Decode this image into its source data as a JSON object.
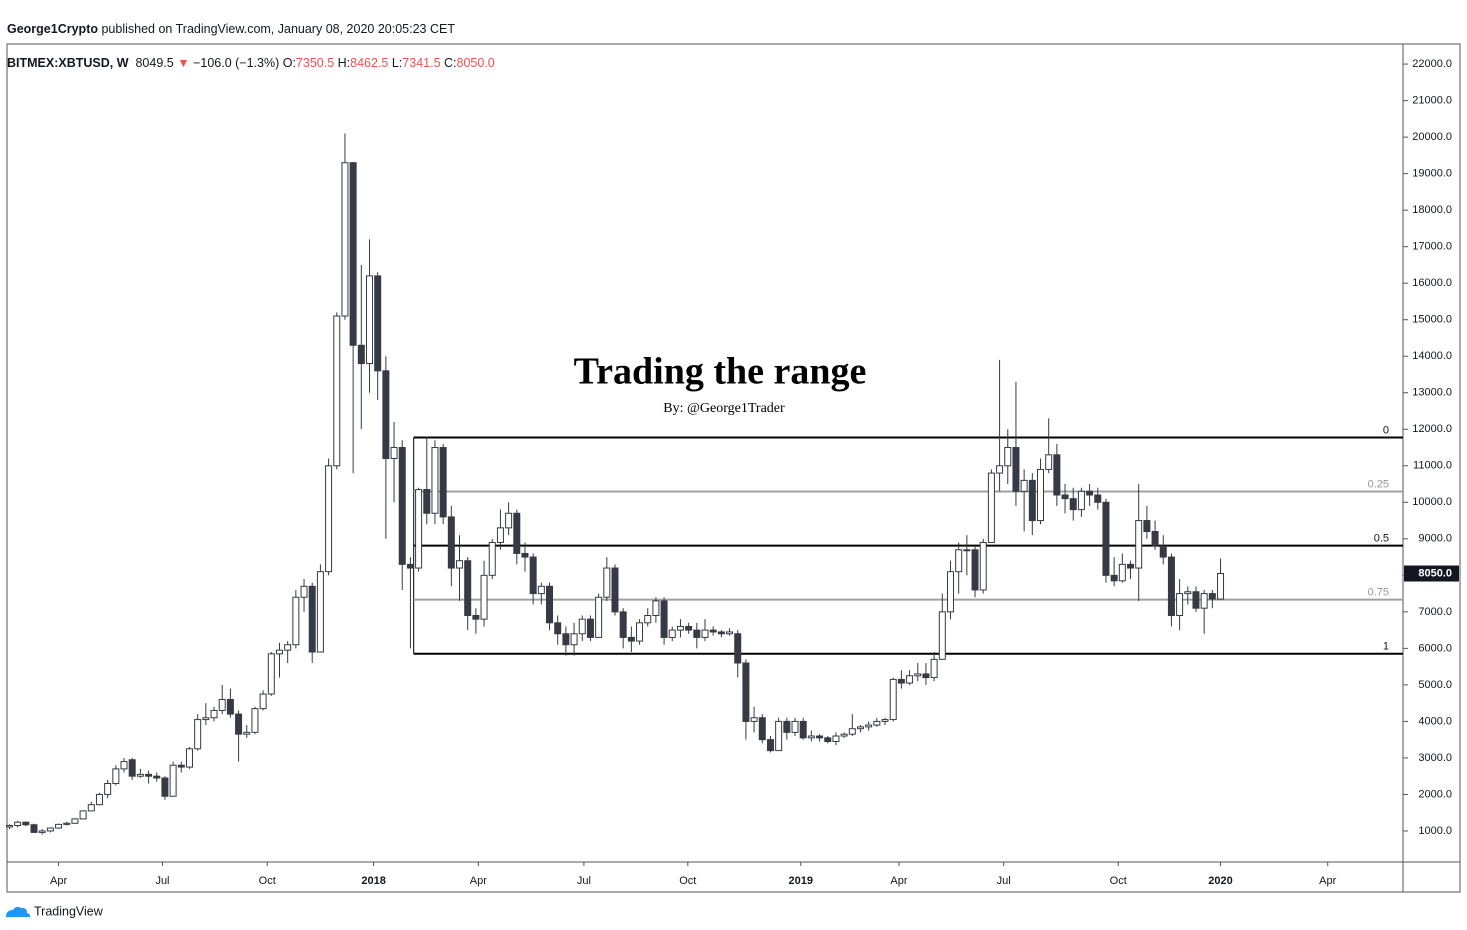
{
  "header": {
    "author": "George1Crypto",
    "published": "published on TradingView.com, January 08, 2020 20:05:23 CET",
    "symbol": "BITMEX:XBTUSD, W",
    "last": "8049.5",
    "change_arrow": "▼",
    "change": "−106.0 (−1.3%)",
    "ohlc": [
      {
        "key": "O:",
        "value": "7350.5"
      },
      {
        "key": "H:",
        "value": "8462.5"
      },
      {
        "key": "L:",
        "value": "7341.5"
      },
      {
        "key": "C:",
        "value": "8050.0"
      }
    ]
  },
  "chart_data": {
    "type": "candlestick",
    "title": "Trading the range",
    "subtitle": "By: @George1Trader",
    "up_color": "#ffffff",
    "down_color": "#363a45",
    "candles": [
      [
        1110,
        1180,
        1050,
        1150
      ],
      [
        1150,
        1280,
        1100,
        1240
      ],
      [
        1240,
        1260,
        1130,
        1170
      ],
      [
        1170,
        1200,
        950,
        960
      ],
      [
        960,
        1050,
        900,
        1000
      ],
      [
        1000,
        1090,
        960,
        1080
      ],
      [
        1080,
        1200,
        1060,
        1180
      ],
      [
        1180,
        1250,
        1150,
        1210
      ],
      [
        1210,
        1350,
        1200,
        1330
      ],
      [
        1330,
        1560,
        1320,
        1550
      ],
      [
        1550,
        1800,
        1550,
        1720
      ],
      [
        1720,
        2050,
        1700,
        2000
      ],
      [
        2000,
        2400,
        1900,
        2300
      ],
      [
        2300,
        2800,
        2250,
        2700
      ],
      [
        2700,
        3000,
        2600,
        2900
      ],
      [
        2950,
        3000,
        2400,
        2500
      ],
      [
        2500,
        2700,
        2450,
        2550
      ],
      [
        2550,
        2650,
        2300,
        2500
      ],
      [
        2500,
        2600,
        2350,
        2450
      ],
      [
        2450,
        2500,
        1850,
        1950
      ],
      [
        1950,
        2900,
        1950,
        2800
      ],
      [
        2800,
        2900,
        2600,
        2750
      ],
      [
        2750,
        3300,
        2700,
        3250
      ],
      [
        3250,
        4200,
        3200,
        4050
      ],
      [
        4050,
        4500,
        3900,
        4100
      ],
      [
        4100,
        4400,
        4000,
        4300
      ],
      [
        4300,
        5000,
        4200,
        4600
      ],
      [
        4600,
        4900,
        4100,
        4200
      ],
      [
        4200,
        4300,
        2900,
        3650
      ],
      [
        3650,
        3900,
        3550,
        3700
      ],
      [
        3700,
        4400,
        3650,
        4350
      ],
      [
        4350,
        4850,
        4300,
        4750
      ],
      [
        4750,
        5900,
        4700,
        5850
      ],
      [
        5850,
        6150,
        5200,
        5950
      ],
      [
        5950,
        6200,
        5600,
        6100
      ],
      [
        6100,
        7600,
        6000,
        7400
      ],
      [
        7400,
        7900,
        7000,
        7700
      ],
      [
        7700,
        7800,
        5600,
        5900
      ],
      [
        5900,
        8300,
        5900,
        8100
      ],
      [
        8100,
        11200,
        8000,
        11000
      ],
      [
        11000,
        15200,
        10900,
        15100
      ],
      [
        15100,
        20100,
        15000,
        19300
      ],
      [
        19300,
        19300,
        10800,
        14300
      ],
      [
        14300,
        16500,
        12000,
        13800
      ],
      [
        13800,
        17200,
        13000,
        16200
      ],
      [
        16200,
        16300,
        12800,
        13600
      ],
      [
        13600,
        14000,
        9000,
        11200
      ],
      [
        11200,
        12200,
        10000,
        11500
      ],
      [
        11500,
        11700,
        7600,
        8300
      ],
      [
        8300,
        8500,
        6000,
        8200
      ],
      [
        8200,
        10400,
        8100,
        10350
      ],
      [
        10350,
        11800,
        9400,
        9700
      ],
      [
        9700,
        11700,
        9400,
        11500
      ],
      [
        11500,
        11600,
        9400,
        9600
      ],
      [
        9600,
        9900,
        7700,
        8200
      ],
      [
        8200,
        9100,
        7300,
        8400
      ],
      [
        8400,
        8500,
        6500,
        6900
      ],
      [
        6900,
        7100,
        6400,
        6800
      ],
      [
        6800,
        8400,
        6600,
        8000
      ],
      [
        8000,
        9000,
        7900,
        8900
      ],
      [
        8900,
        9800,
        8700,
        9300
      ],
      [
        9300,
        10000,
        9100,
        9700
      ],
      [
        9700,
        9800,
        8300,
        8600
      ],
      [
        8600,
        8900,
        8100,
        8500
      ],
      [
        8500,
        8600,
        7200,
        7500
      ],
      [
        7500,
        7800,
        7200,
        7700
      ],
      [
        7700,
        7800,
        6500,
        6700
      ],
      [
        6700,
        6900,
        6100,
        6400
      ],
      [
        6400,
        6600,
        5800,
        6100
      ],
      [
        6100,
        6700,
        5800,
        6400
      ],
      [
        6400,
        6900,
        6200,
        6800
      ],
      [
        6800,
        6900,
        6200,
        6300
      ],
      [
        6300,
        7500,
        6300,
        7400
      ],
      [
        7400,
        8500,
        7300,
        8200
      ],
      [
        8200,
        8300,
        6900,
        7000
      ],
      [
        7000,
        7100,
        6000,
        6300
      ],
      [
        6300,
        6600,
        5900,
        6200
      ],
      [
        6200,
        6800,
        6100,
        6700
      ],
      [
        6700,
        7100,
        6600,
        6900
      ],
      [
        6900,
        7400,
        6700,
        7300
      ],
      [
        7300,
        7400,
        6100,
        6300
      ],
      [
        6300,
        6600,
        6200,
        6500
      ],
      [
        6500,
        6800,
        6300,
        6600
      ],
      [
        6600,
        6700,
        6400,
        6500
      ],
      [
        6500,
        6700,
        6000,
        6300
      ],
      [
        6300,
        6800,
        6200,
        6500
      ],
      [
        6500,
        6600,
        6350,
        6450
      ],
      [
        6450,
        6500,
        6300,
        6400
      ],
      [
        6400,
        6550,
        6350,
        6450
      ],
      [
        6400,
        6500,
        5200,
        5600
      ],
      [
        5600,
        5700,
        3500,
        4000
      ],
      [
        4000,
        4400,
        3700,
        4100
      ],
      [
        4100,
        4200,
        3400,
        3500
      ],
      [
        3500,
        3600,
        3150,
        3200
      ],
      [
        3200,
        4100,
        3200,
        4000
      ],
      [
        4000,
        4100,
        3500,
        3700
      ],
      [
        3700,
        4100,
        3600,
        4000
      ],
      [
        4000,
        4100,
        3500,
        3550
      ],
      [
        3550,
        3750,
        3450,
        3600
      ],
      [
        3600,
        3650,
        3450,
        3550
      ],
      [
        3550,
        3600,
        3400,
        3450
      ],
      [
        3450,
        3700,
        3350,
        3600
      ],
      [
        3600,
        3700,
        3550,
        3650
      ],
      [
        3650,
        4200,
        3600,
        3800
      ],
      [
        3800,
        3900,
        3700,
        3850
      ],
      [
        3850,
        4000,
        3750,
        3900
      ],
      [
        3900,
        4100,
        3850,
        4000
      ],
      [
        4000,
        4100,
        3900,
        4050
      ],
      [
        4050,
        5200,
        4000,
        5150
      ],
      [
        5150,
        5400,
        4900,
        5050
      ],
      [
        5050,
        5400,
        5000,
        5250
      ],
      [
        5250,
        5600,
        5100,
        5300
      ],
      [
        5300,
        5600,
        5000,
        5200
      ],
      [
        5200,
        5900,
        5100,
        5700
      ],
      [
        5700,
        7500,
        5700,
        7000
      ],
      [
        7000,
        8400,
        6800,
        8100
      ],
      [
        8100,
        8900,
        7500,
        8700
      ],
      [
        8700,
        9100,
        8000,
        8700
      ],
      [
        8700,
        8800,
        7400,
        7600
      ],
      [
        7600,
        9000,
        7500,
        8900
      ],
      [
        8900,
        10900,
        8900,
        10800
      ],
      [
        10800,
        13900,
        10300,
        11000
      ],
      [
        11000,
        12000,
        10500,
        11500
      ],
      [
        11500,
        13300,
        9900,
        10300
      ],
      [
        10300,
        10900,
        9200,
        10600
      ],
      [
        10600,
        10800,
        9100,
        9500
      ],
      [
        9500,
        11200,
        9400,
        10900
      ],
      [
        10900,
        12300,
        10800,
        11300
      ],
      [
        11300,
        11600,
        9900,
        10200
      ],
      [
        10200,
        10500,
        9700,
        10100
      ],
      [
        10100,
        10400,
        9500,
        9800
      ],
      [
        9800,
        10400,
        9600,
        10300
      ],
      [
        10300,
        10500,
        9900,
        10200
      ],
      [
        10200,
        10400,
        9800,
        10000
      ],
      [
        10000,
        10100,
        7800,
        8000
      ],
      [
        8000,
        8500,
        7700,
        7850
      ],
      [
        7850,
        8600,
        7800,
        8300
      ],
      [
        8300,
        8400,
        7900,
        8200
      ],
      [
        8200,
        10500,
        7300,
        9500
      ],
      [
        9500,
        9900,
        9000,
        9200
      ],
      [
        9200,
        9500,
        8700,
        8800
      ],
      [
        8800,
        9100,
        8300,
        8500
      ],
      [
        8500,
        8600,
        6600,
        6900
      ],
      [
        6900,
        7900,
        6500,
        7500
      ],
      [
        7500,
        7700,
        7200,
        7550
      ],
      [
        7550,
        7700,
        7000,
        7100
      ],
      [
        7100,
        7600,
        6400,
        7500
      ],
      [
        7500,
        7600,
        7100,
        7350.5
      ],
      [
        7350.5,
        8462.5,
        7341.5,
        8050
      ]
    ],
    "xlim": [
      -0.3,
      170.3
    ],
    "xticks": [
      {
        "value": 6,
        "label": "Apr"
      },
      {
        "value": 18.7,
        "label": "Jul"
      },
      {
        "value": 31.5,
        "label": "Oct"
      },
      {
        "value": 44.5,
        "label": "2018"
      },
      {
        "value": 57.3,
        "label": "Apr"
      },
      {
        "value": 70.2,
        "label": "Jul"
      },
      {
        "value": 82.9,
        "label": "Oct"
      },
      {
        "value": 96.7,
        "label": "2019"
      },
      {
        "value": 108.7,
        "label": "Apr"
      },
      {
        "value": 121.5,
        "label": "Jul"
      },
      {
        "value": 135.5,
        "label": "Oct"
      },
      {
        "value": 148,
        "label": "2020"
      },
      {
        "value": 161.1,
        "label": "Apr"
      }
    ],
    "ylim": [
      150,
      22550
    ],
    "yticks": [
      {
        "value": 1000,
        "label": "1000.0"
      },
      {
        "value": 2000,
        "label": "2000.0"
      },
      {
        "value": 3000,
        "label": "3000.0"
      },
      {
        "value": 4000,
        "label": "4000.0"
      },
      {
        "value": 5000,
        "label": "5000.0"
      },
      {
        "value": 6000,
        "label": "6000.0"
      },
      {
        "value": 7000,
        "label": "7000.0"
      },
      {
        "value": 8000,
        "label": "8000.0"
      },
      {
        "value": 9000,
        "label": "9000.0"
      },
      {
        "value": 10000,
        "label": "10000.0"
      },
      {
        "value": 11000,
        "label": "11000.0"
      },
      {
        "value": 12000,
        "label": "12000.0"
      },
      {
        "value": 13000,
        "label": "13000.0"
      },
      {
        "value": 14000,
        "label": "14000.0"
      },
      {
        "value": 15000,
        "label": "15000.0"
      },
      {
        "value": 16000,
        "label": "16000.0"
      },
      {
        "value": 17000,
        "label": "17000.0"
      },
      {
        "value": 18000,
        "label": "18000.0"
      },
      {
        "value": 19000,
        "label": "19000.0"
      },
      {
        "value": 20000,
        "label": "20000.0"
      },
      {
        "value": 21000,
        "label": "21000.0"
      },
      {
        "value": 22000,
        "label": "22000.0"
      }
    ],
    "levels_start_x": 49.4,
    "levels": [
      {
        "value": 11775,
        "label": "0",
        "color": "#000000"
      },
      {
        "value": 10295,
        "label": "0.25",
        "color": "#a0a0a0"
      },
      {
        "value": 8815,
        "label": "0.5",
        "color": "#000000"
      },
      {
        "value": 7335,
        "label": "0.75",
        "color": "#a0a0a0"
      },
      {
        "value": 5854,
        "label": "1",
        "color": "#000000"
      }
    ],
    "last_price": {
      "value": 8050,
      "label": "8050.0"
    }
  },
  "footer": {
    "brand": "TradingView"
  }
}
